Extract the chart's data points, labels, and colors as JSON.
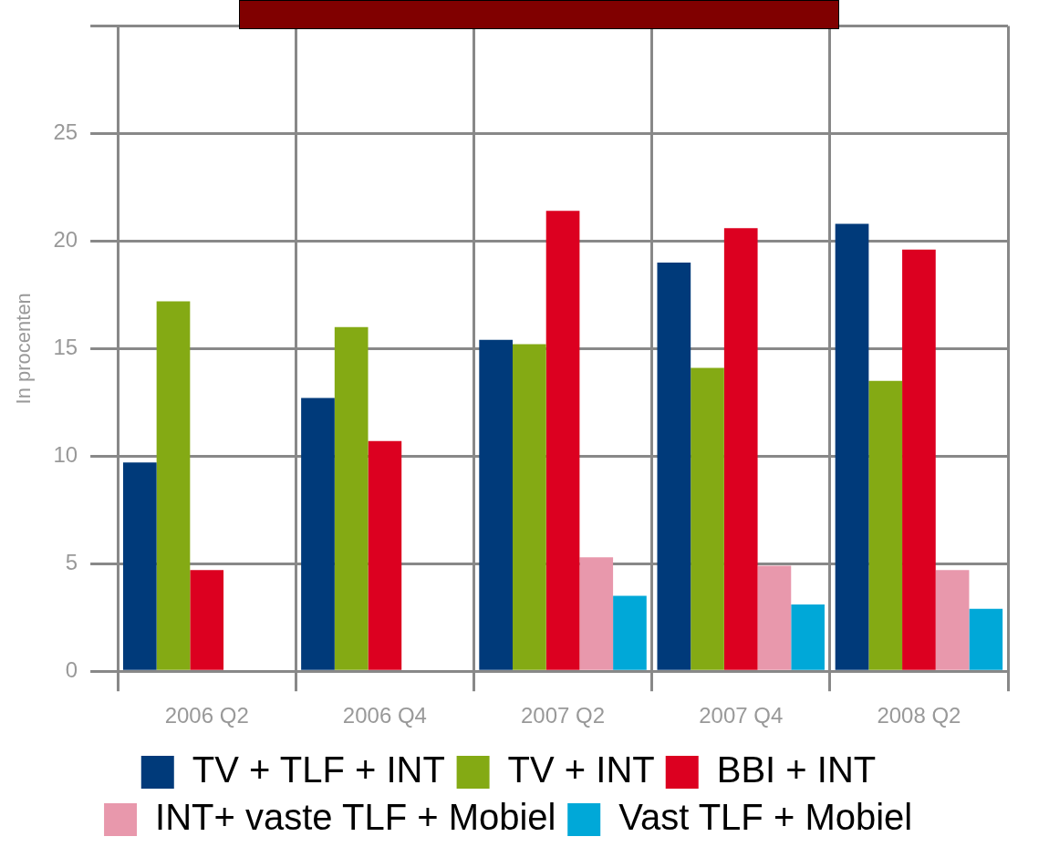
{
  "chart_data": {
    "type": "bar",
    "ylabel": "In procenten",
    "categories": [
      "2006 Q2",
      "2006 Q4",
      "2007 Q2",
      "2007 Q4",
      "2008 Q2"
    ],
    "series": [
      {
        "name": "TV + TLF + INT",
        "color": "#003a7a",
        "values": [
          9.7,
          12.7,
          15.4,
          19.0,
          20.8
        ]
      },
      {
        "name": "TV + INT",
        "color": "#84aa14",
        "values": [
          17.2,
          16.0,
          15.2,
          14.1,
          13.5
        ]
      },
      {
        "name": "BBI + INT",
        "color": "#dc0020",
        "values": [
          4.7,
          10.7,
          21.4,
          20.6,
          19.6
        ]
      },
      {
        "name": "INT+ vaste TLF + Mobiel",
        "color": "#e898ac",
        "values": [
          null,
          null,
          5.3,
          4.9,
          4.7
        ]
      },
      {
        "name": "Vast TLF + Mobiel",
        "color": "#00a8d8",
        "values": [
          null,
          null,
          3.5,
          3.1,
          2.9
        ]
      }
    ],
    "ylim": [
      0,
      30
    ],
    "yticks": [
      0,
      5,
      10,
      15,
      20,
      25,
      {
        "value": 30,
        "label": null
      }
    ],
    "grid": true,
    "legend": "bottom"
  }
}
